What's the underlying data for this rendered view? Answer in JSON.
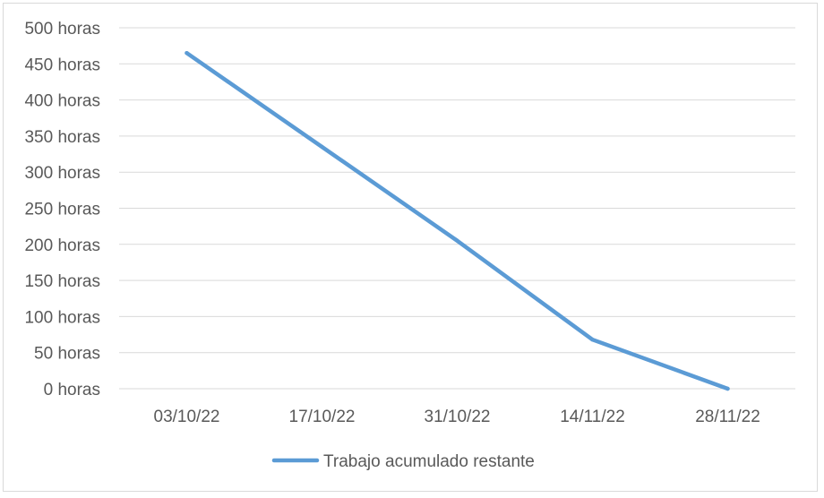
{
  "chart_data": {
    "type": "line",
    "x": [
      "03/10/22",
      "17/10/22",
      "31/10/22",
      "14/11/22",
      "28/11/22"
    ],
    "series": [
      {
        "name": "Trabajo acumulado restante",
        "color": "#5b9bd5",
        "values": [
          465,
          335,
          205,
          68,
          0
        ]
      }
    ],
    "y_ticks": [
      "0 horas",
      "50 horas",
      "100 horas",
      "150 horas",
      "200 horas",
      "250 horas",
      "300 horas",
      "350 horas",
      "400 horas",
      "450 horas",
      "500 horas"
    ],
    "y_tick_values": [
      0,
      50,
      100,
      150,
      200,
      250,
      300,
      350,
      400,
      450,
      500
    ],
    "ylim": [
      0,
      500
    ],
    "grid": true,
    "legend_position": "bottom"
  }
}
